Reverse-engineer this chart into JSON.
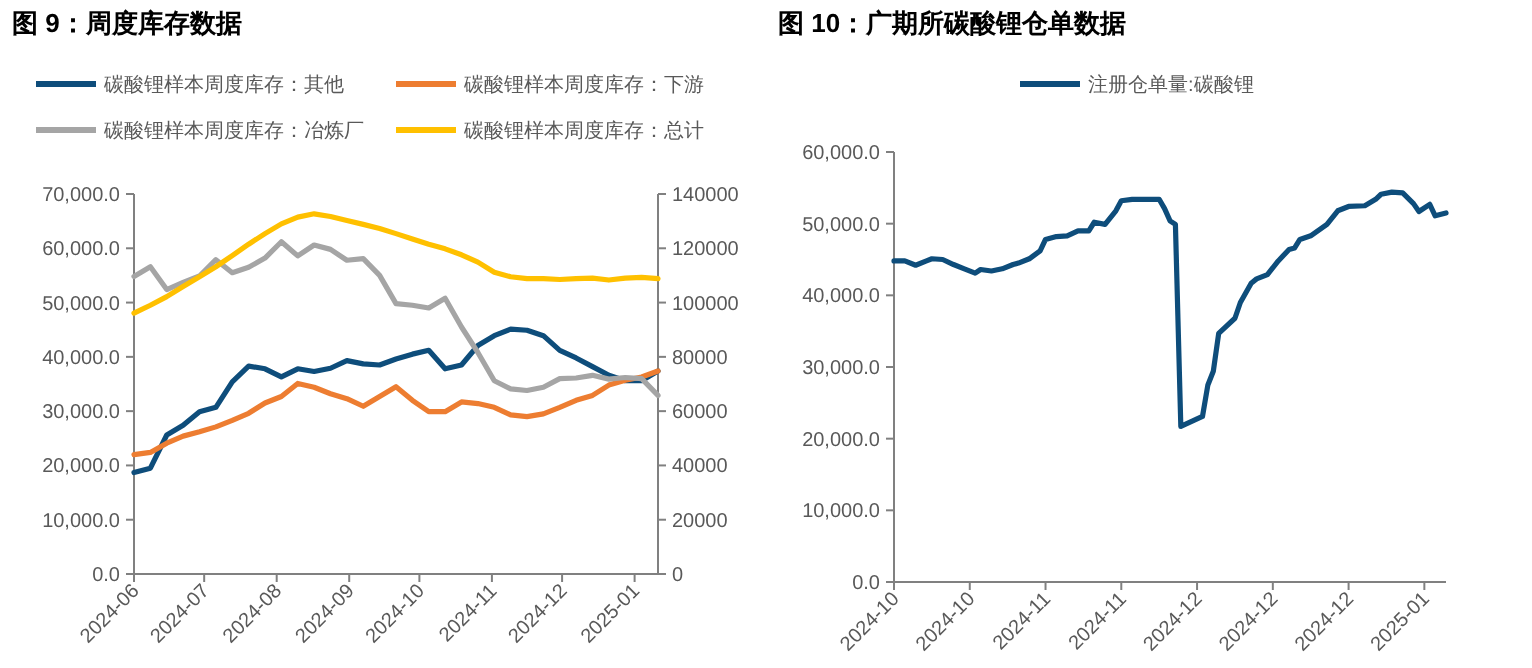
{
  "chart_data": [
    {
      "type": "line",
      "title": "图 9：周度库存数据",
      "legend": "top",
      "x": [
        "2024-06-01",
        "2024-06-08",
        "2024-06-15",
        "2024-06-22",
        "2024-06-29",
        "2024-07-06",
        "2024-07-13",
        "2024-07-20",
        "2024-07-27",
        "2024-08-03",
        "2024-08-10",
        "2024-08-17",
        "2024-08-24",
        "2024-08-31",
        "2024-09-07",
        "2024-09-14",
        "2024-09-21",
        "2024-09-28",
        "2024-10-05",
        "2024-10-12",
        "2024-10-19",
        "2024-10-26",
        "2024-11-02",
        "2024-11-09",
        "2024-11-16",
        "2024-11-23",
        "2024-11-30",
        "2024-12-07",
        "2024-12-14",
        "2024-12-21",
        "2024-12-28",
        "2025-01-04",
        "2025-01-11"
      ],
      "xlim": [
        "2024-06-01",
        "2025-01-11"
      ],
      "xticks": [
        "2024-06",
        "2024-07",
        "2024-08",
        "2024-09",
        "2024-10",
        "2024-11",
        "2024-12",
        "2025-01"
      ],
      "ylim": [
        0,
        70000
      ],
      "yticks": [
        {
          "value": 0,
          "label": "0.0"
        },
        {
          "value": 10000,
          "label": "10,000.0"
        },
        {
          "value": 20000,
          "label": "20,000.0"
        },
        {
          "value": 30000,
          "label": "30,000.0"
        },
        {
          "value": 40000,
          "label": "40,000.0"
        },
        {
          "value": 50000,
          "label": "50,000.0"
        },
        {
          "value": 60000,
          "label": "60,000.0"
        },
        {
          "value": 70000,
          "label": "70,000.0"
        }
      ],
      "y2lim": [
        0,
        140000
      ],
      "y2ticks": [
        0,
        20000,
        40000,
        60000,
        80000,
        100000,
        120000,
        140000
      ],
      "series": [
        {
          "name": "碳酸锂样本周度库存：其他",
          "color": "#0e4d7b",
          "values": [
            18700,
            19500,
            25600,
            27400,
            29900,
            30700,
            35400,
            38300,
            37800,
            36300,
            37800,
            37300,
            37900,
            39300,
            38700,
            38500,
            39600,
            40500,
            41200,
            37800,
            38500,
            42100,
            43900,
            45100,
            44900,
            43900,
            41200,
            39800,
            38200,
            36600,
            35600,
            35600,
            37400
          ]
        },
        {
          "name": "碳酸锂样本周度库存：下游",
          "color": "#ed7d31",
          "values": [
            22000,
            22400,
            24100,
            25400,
            26200,
            27100,
            28300,
            29600,
            31500,
            32700,
            35100,
            34400,
            33200,
            32300,
            30900,
            32700,
            34500,
            32000,
            29900,
            29900,
            31700,
            31400,
            30700,
            29300,
            29000,
            29500,
            30700,
            32000,
            32900,
            34800,
            35700,
            36300,
            37400
          ]
        },
        {
          "name": "碳酸锂样本周度库存：冶炼厂",
          "color": "#a5a5a5",
          "values": [
            54800,
            56600,
            52400,
            53700,
            54900,
            57900,
            55500,
            56500,
            58200,
            61200,
            58600,
            60600,
            59800,
            57800,
            58100,
            55000,
            49800,
            49500,
            49000,
            50800,
            45500,
            40800,
            35600,
            34100,
            33800,
            34400,
            36000,
            36100,
            36600,
            35900,
            36200,
            36000,
            32900
          ]
        },
        {
          "name": "碳酸锂样本周度库存：总计",
          "color": "#ffc000",
          "axis": "y2",
          "values": [
            96100,
            99000,
            102200,
            105900,
            109500,
            113200,
            117300,
            121500,
            125400,
            129000,
            131500,
            132700,
            131700,
            130200,
            128800,
            127300,
            125400,
            123400,
            121500,
            119800,
            117600,
            114900,
            111200,
            109500,
            108800,
            108800,
            108500,
            108800,
            109000,
            108300,
            109000,
            109300,
            108800
          ]
        }
      ]
    },
    {
      "type": "line",
      "title": "图 10：广期所碳酸锂仓单数据",
      "legend": "top",
      "xlim": [
        "2024-10-06",
        "2025-01-16"
      ],
      "xticks": [
        {
          "value": "2024-10-06",
          "label": "2024-10"
        },
        {
          "value": "2024-10-20",
          "label": "2024-10"
        },
        {
          "value": "2024-11-03",
          "label": "2024-11"
        },
        {
          "value": "2024-11-17",
          "label": "2024-11"
        },
        {
          "value": "2024-12-01",
          "label": "2024-12"
        },
        {
          "value": "2024-12-15",
          "label": "2024-12"
        },
        {
          "value": "2024-12-29",
          "label": "2024-12"
        },
        {
          "value": "2025-01-12",
          "label": "2025-01"
        }
      ],
      "ylim": [
        0,
        60000
      ],
      "yticks": [
        {
          "value": 0,
          "label": "0.0"
        },
        {
          "value": 10000,
          "label": "10,000.0"
        },
        {
          "value": 20000,
          "label": "20,000.0"
        },
        {
          "value": 30000,
          "label": "30,000.0"
        },
        {
          "value": 40000,
          "label": "40,000.0"
        },
        {
          "value": 50000,
          "label": "50,000.0"
        },
        {
          "value": 60000,
          "label": "60,000.0"
        }
      ],
      "series": [
        {
          "name": "注册仓单量:碳酸锂",
          "color": "#0e4d7b",
          "x": [
            "2024-10-06",
            "2024-10-08",
            "2024-10-10",
            "2024-10-12",
            "2024-10-13",
            "2024-10-15",
            "2024-10-17",
            "2024-10-19",
            "2024-10-21",
            "2024-10-22",
            "2024-10-24",
            "2024-10-26",
            "2024-10-28",
            "2024-10-29",
            "2024-10-31",
            "2024-11-02",
            "2024-11-03",
            "2024-11-05",
            "2024-11-07",
            "2024-11-09",
            "2024-11-11",
            "2024-11-12",
            "2024-11-14",
            "2024-11-16",
            "2024-11-17",
            "2024-11-19",
            "2024-11-21",
            "2024-11-24",
            "2024-11-25",
            "2024-11-26",
            "2024-11-27",
            "2024-11-28",
            "2024-12-02",
            "2024-12-03",
            "2024-12-04",
            "2024-12-05",
            "2024-12-08",
            "2024-12-09",
            "2024-12-11",
            "2024-12-12",
            "2024-12-14",
            "2024-12-16",
            "2024-12-18",
            "2024-12-19",
            "2024-12-20",
            "2024-12-22",
            "2024-12-25",
            "2024-12-27",
            "2024-12-29",
            "2025-01-01",
            "2025-01-03",
            "2025-01-04",
            "2025-01-06",
            "2025-01-08",
            "2025-01-10",
            "2025-01-11",
            "2025-01-13",
            "2025-01-14",
            "2025-01-16"
          ],
          "values": [
            44800,
            44800,
            44200,
            44800,
            45100,
            45000,
            44300,
            43700,
            43100,
            43600,
            43400,
            43700,
            44300,
            44500,
            45100,
            46200,
            47800,
            48200,
            48300,
            49000,
            49000,
            50200,
            49900,
            51800,
            53200,
            53400,
            53400,
            53400,
            52100,
            50400,
            49900,
            21700,
            23100,
            27500,
            29400,
            34700,
            36800,
            39000,
            41700,
            42300,
            42900,
            44800,
            46400,
            46600,
            47800,
            48300,
            49900,
            51800,
            52400,
            52500,
            53400,
            54100,
            54400,
            54300,
            52800,
            51700,
            52700,
            51100,
            51500
          ]
        }
      ]
    }
  ]
}
